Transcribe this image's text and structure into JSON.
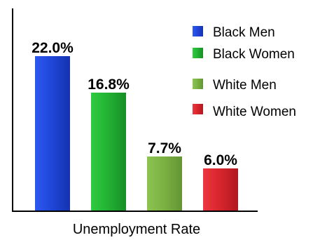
{
  "chart_data": {
    "type": "bar",
    "title": "",
    "xlabel": "Unemployment Rate",
    "ylabel": "",
    "ylim": [
      0,
      24
    ],
    "grid": false,
    "legend_position": "top-right",
    "categories": [
      "Black Men",
      "Black Women",
      "White Men",
      "White Women"
    ],
    "values": [
      22.0,
      16.8,
      7.7,
      6.0
    ],
    "data_labels": [
      "22.0%",
      "16.8%",
      "7.7%",
      "6.0%"
    ],
    "colors": [
      "#1f45d6",
      "#22b033",
      "#7ab041",
      "#d6242c"
    ],
    "legend": [
      {
        "label": "Black Men",
        "color": "#1f45d6"
      },
      {
        "label": "Black Women",
        "color": "#22b033"
      },
      {
        "label": "White Men",
        "color": "#7ab041"
      },
      {
        "label": "White Women",
        "color": "#d6242c"
      }
    ]
  }
}
